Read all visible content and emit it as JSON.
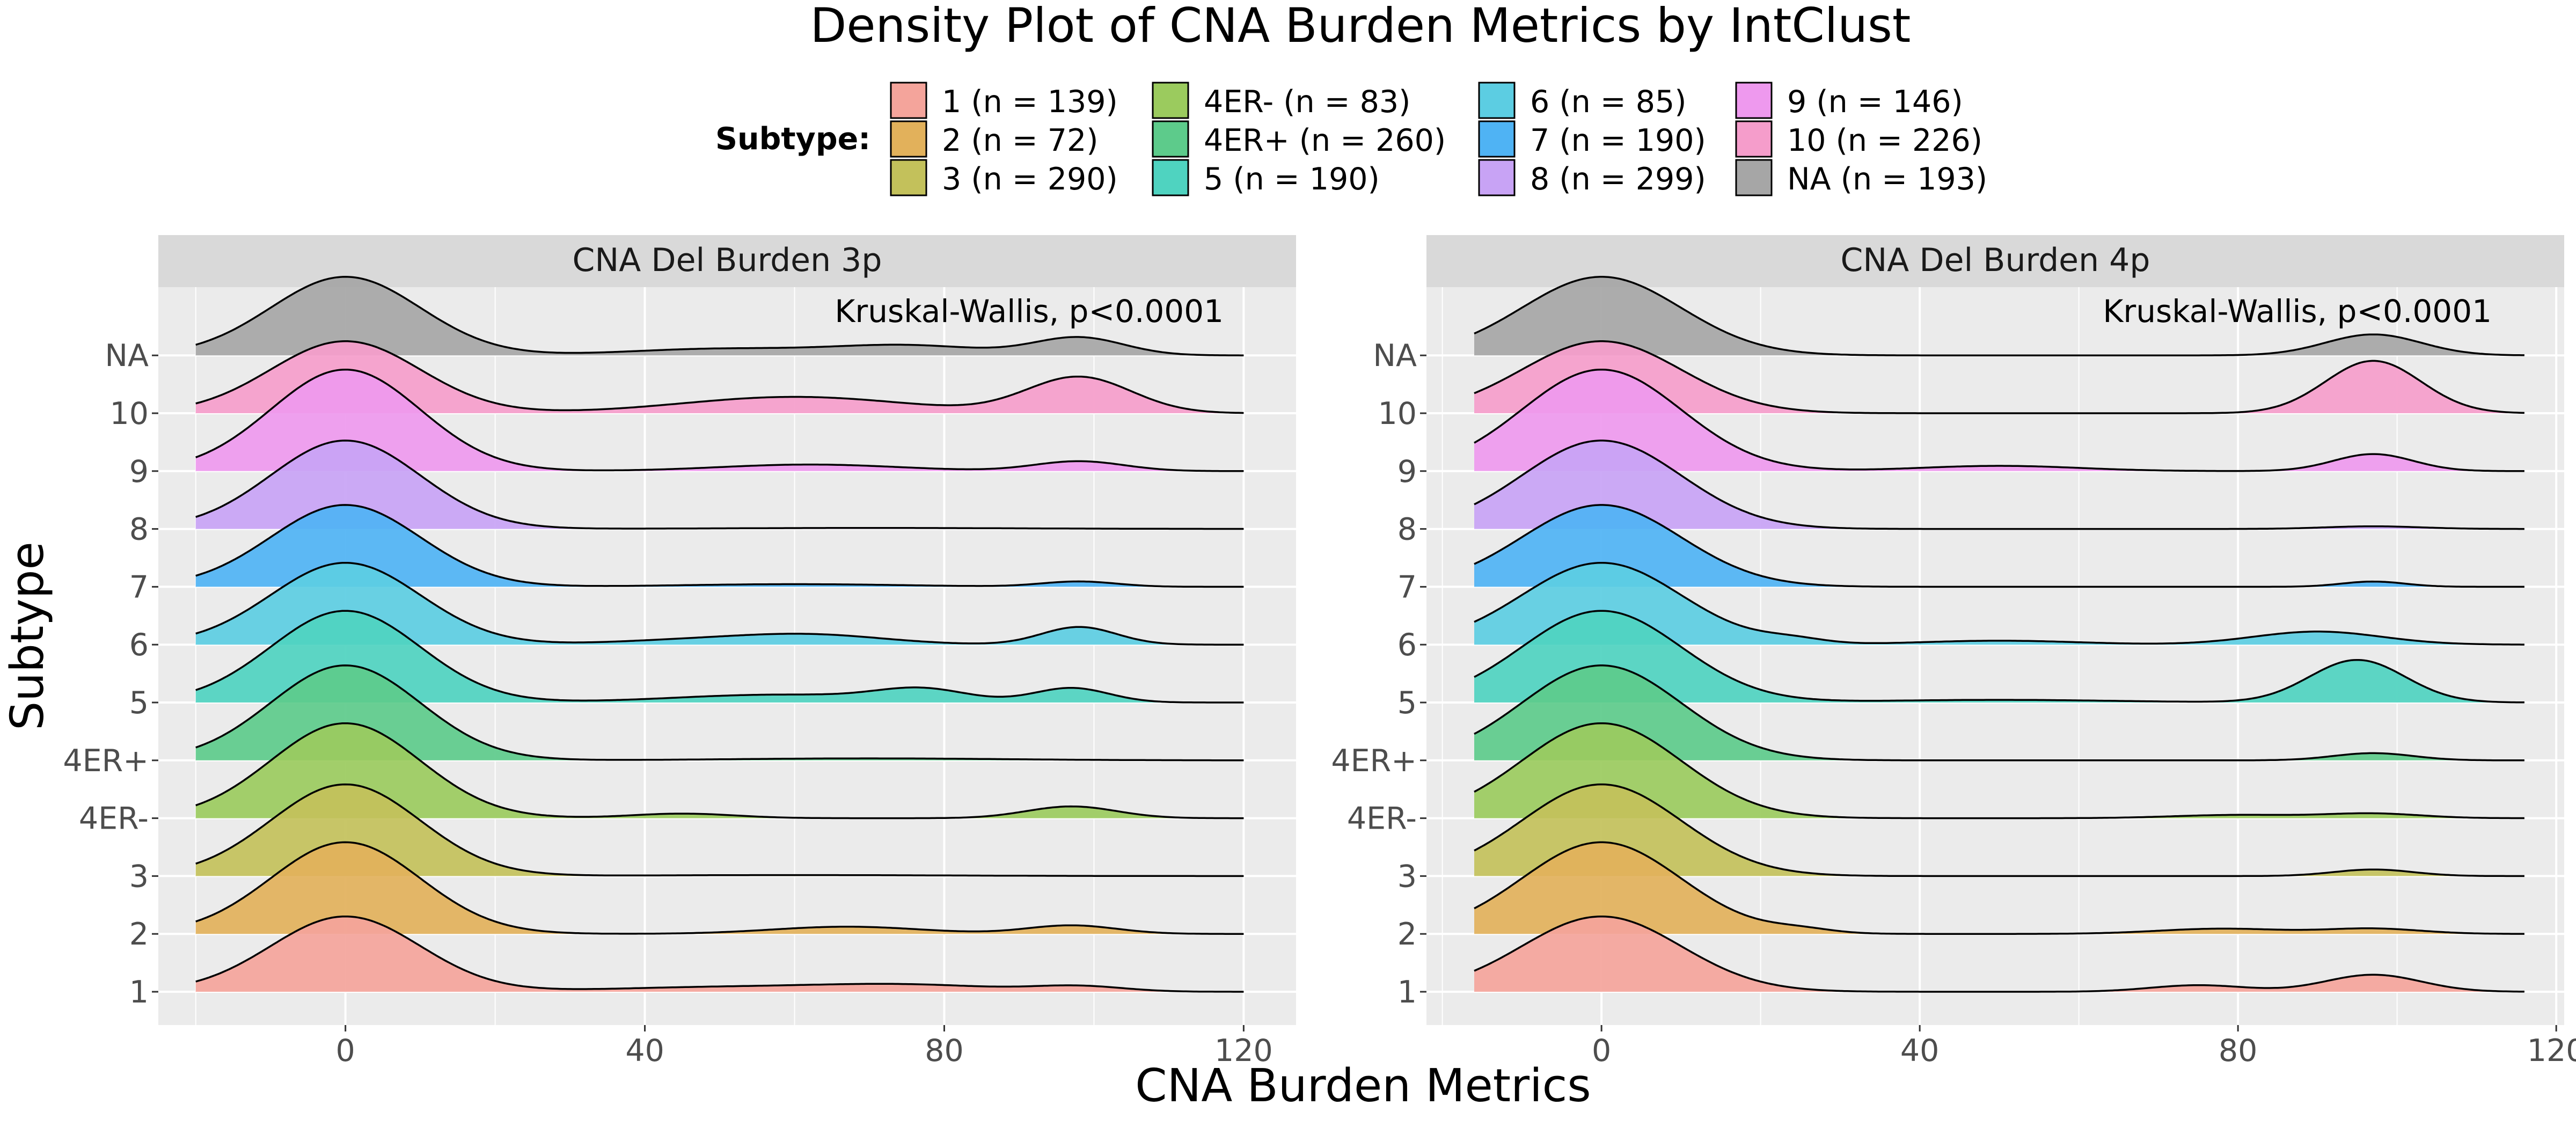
{
  "chart_data": {
    "type": "ridgeline",
    "title": "Density Plot of CNA Burden Metrics by IntClust",
    "xlabel": "CNA Burden Metrics",
    "ylabel": "Subtype",
    "legend": {
      "title": "Subtype:",
      "placement": "top",
      "entries": [
        {
          "label": "1  (n = 139)",
          "color": "#F4A49B"
        },
        {
          "label": "2  (n = 72)",
          "color": "#E2B15B"
        },
        {
          "label": "3  (n = 290)",
          "color": "#C3C15B"
        },
        {
          "label": "4ER-  (n = 83)",
          "color": "#9BCB5E"
        },
        {
          "label": "4ER+  (n = 260)",
          "color": "#5DCB8B"
        },
        {
          "label": "5  (n = 190)",
          "color": "#4FD3C0"
        },
        {
          "label": "6  (n = 85)",
          "color": "#5CCDE2"
        },
        {
          "label": "7  (n = 190)",
          "color": "#4FB3F4"
        },
        {
          "label": "8  (n = 299)",
          "color": "#C8A3F5"
        },
        {
          "label": "9  (n = 146)",
          "color": "#EE99EE"
        },
        {
          "label": "10  (n = 226)",
          "color": "#F59DCB"
        },
        {
          "label": "NA  (n = 193)",
          "color": "#A6A6A6"
        }
      ]
    },
    "categories": [
      "1",
      "2",
      "3",
      "4ER-",
      "4ER+",
      "5",
      "6",
      "7",
      "8",
      "9",
      "10",
      "NA"
    ],
    "panels": [
      {
        "strip": "CNA Del Burden 3p",
        "annotation": "Kruskal-Wallis, p<0.0001",
        "xlim": [
          -25,
          127
        ],
        "xrange": [
          -20,
          120
        ],
        "xticks": [
          0,
          40,
          80,
          120
        ],
        "xtick_labels": [
          "0",
          "40",
          "80",
          "120"
        ],
        "ridges": [
          {
            "subtype": "1",
            "peak": 1.15,
            "bumps": [
              [
                50,
                0.07,
                15
              ],
              [
                75,
                0.1,
                12
              ],
              [
                98,
                0.08,
                6
              ]
            ]
          },
          {
            "subtype": "2",
            "peak": 1.4,
            "bumps": [
              [
                67,
                0.11,
                10
              ],
              [
                97,
                0.13,
                6
              ]
            ]
          },
          {
            "subtype": "3",
            "peak": 1.4,
            "bumps": [
              [
                60,
                0.015,
                20
              ]
            ]
          },
          {
            "subtype": "4ER-",
            "peak": 1.45,
            "bumps": [
              [
                45,
                0.07,
                7
              ],
              [
                97,
                0.18,
                6
              ]
            ]
          },
          {
            "subtype": "4ER+",
            "peak": 1.45,
            "bumps": [
              [
                70,
                0.03,
                18
              ]
            ]
          },
          {
            "subtype": "5",
            "peak": 1.4,
            "bumps": [
              [
                58,
                0.12,
                14
              ],
              [
                77,
                0.18,
                6
              ],
              [
                97,
                0.22,
                5
              ]
            ]
          },
          {
            "subtype": "6",
            "peak": 1.25,
            "bumps": [
              [
                45,
                0.06,
                10
              ],
              [
                62,
                0.15,
                10
              ],
              [
                98,
                0.27,
                5
              ]
            ]
          },
          {
            "subtype": "7",
            "peak": 1.25,
            "bumps": [
              [
                60,
                0.04,
                15
              ],
              [
                98,
                0.08,
                5
              ]
            ]
          },
          {
            "subtype": "8",
            "peak": 1.35,
            "bumps": [
              [
                70,
                0.015,
                20
              ]
            ]
          },
          {
            "subtype": "9",
            "peak": 1.55,
            "bumps": [
              [
                62,
                0.1,
                12
              ],
              [
                98,
                0.15,
                6
              ]
            ]
          },
          {
            "subtype": "10",
            "peak": 1.1,
            "bumps": [
              [
                60,
                0.25,
                15
              ],
              [
                98,
                0.55,
                7
              ]
            ]
          },
          {
            "subtype": "NA",
            "peak": 1.2,
            "bumps": [
              [
                50,
                0.1,
                12
              ],
              [
                75,
                0.15,
                10
              ],
              [
                98,
                0.27,
                6
              ]
            ]
          }
        ]
      },
      {
        "strip": "CNA Del Burden 4p",
        "annotation": "Kruskal-Wallis, p<0.0001",
        "xlim": [
          -22,
          121
        ],
        "xrange": [
          -16,
          116
        ],
        "xticks": [
          0,
          40,
          80,
          120
        ],
        "xtick_labels": [
          "0",
          "40",
          "80",
          "120"
        ],
        "ridges": [
          {
            "subtype": "1",
            "peak": 1.15,
            "bumps": [
              [
                75,
                0.1,
                6
              ],
              [
                97,
                0.26,
                6
              ]
            ]
          },
          {
            "subtype": "2",
            "peak": 1.4,
            "bumps": [
              [
                25,
                0.06,
                4
              ],
              [
                78,
                0.08,
                8
              ],
              [
                97,
                0.08,
                6
              ]
            ]
          },
          {
            "subtype": "3",
            "peak": 1.4,
            "bumps": [
              [
                97,
                0.1,
                5
              ]
            ]
          },
          {
            "subtype": "4ER-",
            "peak": 1.45,
            "bumps": [
              [
                80,
                0.05,
                8
              ],
              [
                97,
                0.07,
                6
              ]
            ]
          },
          {
            "subtype": "4ER+",
            "peak": 1.45,
            "bumps": [
              [
                97,
                0.11,
                5
              ]
            ]
          },
          {
            "subtype": "5",
            "peak": 1.4,
            "bumps": [
              [
                50,
                0.04,
                15
              ],
              [
                95,
                0.65,
                6
              ]
            ]
          },
          {
            "subtype": "6",
            "peak": 1.25,
            "bumps": [
              [
                24,
                0.07,
                4
              ],
              [
                50,
                0.06,
                10
              ],
              [
                90,
                0.2,
                8
              ]
            ]
          },
          {
            "subtype": "7",
            "peak": 1.25,
            "bumps": [
              [
                97,
                0.08,
                4
              ]
            ]
          },
          {
            "subtype": "8",
            "peak": 1.35,
            "bumps": [
              [
                97,
                0.04,
                6
              ]
            ]
          },
          {
            "subtype": "9",
            "peak": 1.55,
            "bumps": [
              [
                50,
                0.08,
                10
              ],
              [
                97,
                0.26,
                5
              ]
            ]
          },
          {
            "subtype": "10",
            "peak": 1.1,
            "bumps": [
              [
                97,
                0.8,
                6
              ]
            ]
          },
          {
            "subtype": "NA",
            "peak": 1.2,
            "bumps": [
              [
                97,
                0.32,
                6
              ]
            ]
          }
        ]
      }
    ]
  }
}
